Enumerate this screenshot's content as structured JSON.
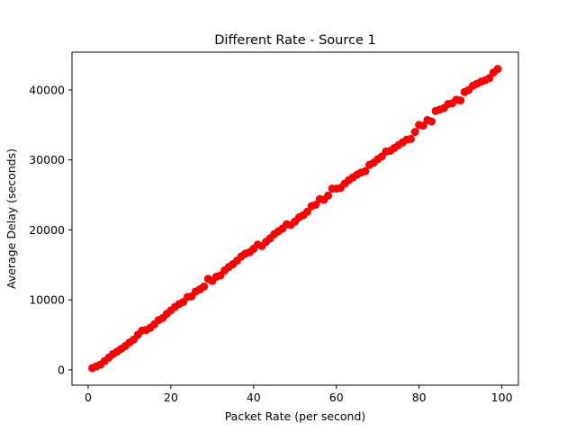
{
  "chart_data": {
    "type": "scatter",
    "title": "Different Rate - Source 1",
    "xlabel": "Packet Rate (per second)",
    "ylabel": "Average Delay (seconds)",
    "xlim": [
      -3.9,
      104.0
    ],
    "ylim": [
      -2200,
      45400
    ],
    "xticks": [
      0,
      20,
      40,
      60,
      80,
      100
    ],
    "yticks": [
      0,
      10000,
      20000,
      30000,
      40000
    ],
    "grid": false,
    "marker_color": "#ff0000",
    "points": [
      [
        1,
        250
      ],
      [
        2,
        500
      ],
      [
        3,
        750
      ],
      [
        4,
        1250
      ],
      [
        5,
        1750
      ],
      [
        6,
        2250
      ],
      [
        7,
        2600
      ],
      [
        8,
        3000
      ],
      [
        9,
        3400
      ],
      [
        10,
        3900
      ],
      [
        11,
        4300
      ],
      [
        12,
        5000
      ],
      [
        13,
        5600
      ],
      [
        14,
        5700
      ],
      [
        15,
        6000
      ],
      [
        16,
        6500
      ],
      [
        17,
        7100
      ],
      [
        18,
        7400
      ],
      [
        19,
        8000
      ],
      [
        20,
        8500
      ],
      [
        21,
        9000
      ],
      [
        22,
        9400
      ],
      [
        23,
        9700
      ],
      [
        24,
        10400
      ],
      [
        25,
        10500
      ],
      [
        26,
        11200
      ],
      [
        27,
        11500
      ],
      [
        28,
        11900
      ],
      [
        29,
        13000
      ],
      [
        30,
        12700
      ],
      [
        31,
        13300
      ],
      [
        32,
        13500
      ],
      [
        33,
        14200
      ],
      [
        34,
        14700
      ],
      [
        35,
        15100
      ],
      [
        36,
        15600
      ],
      [
        37,
        16200
      ],
      [
        38,
        16600
      ],
      [
        39,
        16800
      ],
      [
        40,
        17300
      ],
      [
        41,
        17900
      ],
      [
        42,
        17700
      ],
      [
        43,
        18300
      ],
      [
        44,
        18800
      ],
      [
        45,
        19400
      ],
      [
        46,
        19800
      ],
      [
        47,
        20200
      ],
      [
        48,
        20800
      ],
      [
        49,
        20700
      ],
      [
        50,
        21200
      ],
      [
        51,
        21800
      ],
      [
        52,
        22100
      ],
      [
        53,
        22600
      ],
      [
        54,
        23400
      ],
      [
        55,
        23600
      ],
      [
        56,
        24400
      ],
      [
        57,
        24300
      ],
      [
        58,
        24900
      ],
      [
        59,
        25900
      ],
      [
        60,
        25900
      ],
      [
        61,
        26000
      ],
      [
        62,
        26600
      ],
      [
        63,
        27100
      ],
      [
        64,
        27500
      ],
      [
        65,
        27900
      ],
      [
        66,
        28200
      ],
      [
        67,
        28400
      ],
      [
        68,
        29300
      ],
      [
        69,
        29600
      ],
      [
        70,
        30100
      ],
      [
        71,
        30500
      ],
      [
        72,
        31200
      ],
      [
        73,
        31300
      ],
      [
        74,
        31700
      ],
      [
        75,
        32100
      ],
      [
        76,
        32500
      ],
      [
        77,
        32900
      ],
      [
        78,
        33000
      ],
      [
        79,
        34000
      ],
      [
        80,
        35000
      ],
      [
        81,
        34900
      ],
      [
        82,
        35700
      ],
      [
        83,
        35500
      ],
      [
        84,
        37000
      ],
      [
        85,
        37200
      ],
      [
        86,
        37400
      ],
      [
        87,
        38000
      ],
      [
        88,
        38100
      ],
      [
        89,
        38600
      ],
      [
        90,
        38500
      ],
      [
        91,
        39700
      ],
      [
        92,
        40000
      ],
      [
        93,
        40600
      ],
      [
        94,
        40900
      ],
      [
        95,
        41200
      ],
      [
        96,
        41400
      ],
      [
        97,
        41700
      ],
      [
        98,
        42500
      ],
      [
        99,
        43000
      ]
    ]
  }
}
